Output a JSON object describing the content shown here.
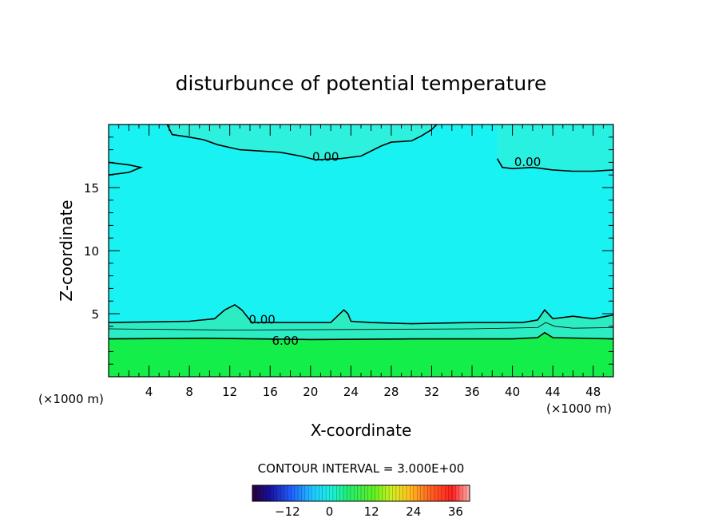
{
  "chart_data": {
    "type": "heatmap",
    "title": "disturbunce of potential temperature",
    "xlabel": "X-coordinate",
    "ylabel": "Z-coordinate",
    "x_unit_left": "(×1000 m)",
    "x_unit_right": "(×1000 m)",
    "xlim": [
      0,
      50
    ],
    "ylim": [
      0,
      20
    ],
    "x_ticks": [
      4,
      8,
      12,
      16,
      20,
      24,
      28,
      32,
      36,
      40,
      44,
      48
    ],
    "y_ticks": [
      5,
      10,
      15
    ],
    "contour_labels": [
      {
        "text": "0.00",
        "x": 21.5,
        "z": 17.5
      },
      {
        "text": "0.00",
        "x": 41.5,
        "z": 17.1
      },
      {
        "text": "0.00",
        "x": 15.2,
        "z": 4.6
      },
      {
        "text": "6.00",
        "x": 17.5,
        "z": 2.9
      }
    ],
    "contour_lines": [
      {
        "level": 6.0,
        "points": [
          [
            0,
            3.0
          ],
          [
            10,
            3.05
          ],
          [
            20,
            2.95
          ],
          [
            30,
            3.0
          ],
          [
            40,
            3.0
          ],
          [
            42.5,
            3.1
          ],
          [
            43.2,
            3.5
          ],
          [
            44,
            3.1
          ],
          [
            50,
            3.0
          ]
        ]
      },
      {
        "level": 3.0,
        "points": [
          [
            0,
            3.8
          ],
          [
            12,
            3.7
          ],
          [
            24,
            3.75
          ],
          [
            36,
            3.8
          ],
          [
            42.5,
            3.9
          ],
          [
            43.3,
            4.3
          ],
          [
            44.2,
            4.0
          ],
          [
            46,
            3.85
          ],
          [
            50,
            3.9
          ]
        ]
      },
      {
        "level": 0.0,
        "points": [
          [
            0,
            4.3
          ],
          [
            8,
            4.4
          ],
          [
            10.5,
            4.6
          ],
          [
            11.5,
            5.3
          ],
          [
            12.5,
            5.7
          ],
          [
            13.2,
            5.3
          ],
          [
            14.2,
            4.3
          ],
          [
            22,
            4.3
          ],
          [
            23.3,
            5.3
          ],
          [
            23.7,
            5.0
          ],
          [
            24,
            4.4
          ],
          [
            26,
            4.3
          ],
          [
            30,
            4.2
          ],
          [
            36,
            4.3
          ],
          [
            41,
            4.3
          ],
          [
            42.5,
            4.5
          ],
          [
            43.2,
            5.3
          ],
          [
            44,
            4.6
          ],
          [
            46,
            4.8
          ],
          [
            48,
            4.6
          ],
          [
            50,
            4.9
          ]
        ]
      },
      {
        "level": 0.0,
        "points": [
          [
            5.8,
            20
          ],
          [
            6.3,
            19.2
          ],
          [
            8,
            19.0
          ],
          [
            9.4,
            18.8
          ],
          [
            10.8,
            18.4
          ],
          [
            13,
            18.0
          ],
          [
            15,
            17.9
          ],
          [
            17,
            17.8
          ],
          [
            19,
            17.5
          ],
          [
            20.5,
            17.2
          ],
          [
            23,
            17.3
          ],
          [
            25,
            17.5
          ],
          [
            27,
            18.3
          ],
          [
            28,
            18.6
          ],
          [
            30,
            18.7
          ],
          [
            31,
            19.1
          ],
          [
            32,
            19.6
          ],
          [
            32.5,
            20
          ]
        ]
      },
      {
        "level": 0.0,
        "points": [
          [
            38.5,
            17.3
          ],
          [
            39,
            16.6
          ],
          [
            40,
            16.5
          ],
          [
            42,
            16.6
          ],
          [
            44,
            16.4
          ],
          [
            46,
            16.3
          ],
          [
            48,
            16.3
          ],
          [
            50,
            16.4
          ]
        ]
      },
      {
        "level": 0.0,
        "points": [
          [
            0,
            17.0
          ],
          [
            2,
            16.8
          ],
          [
            3.2,
            16.6
          ],
          [
            2,
            16.2
          ],
          [
            0,
            16.0
          ]
        ]
      }
    ],
    "colorbar": {
      "label": "CONTOUR INTERVAL = 3.000E+00",
      "ticks": [
        -12,
        0,
        12,
        24,
        36
      ],
      "range": [
        -22,
        40
      ]
    },
    "colors": {
      "background_field": "#19f2f2",
      "mid_field": "#2cecc4",
      "low_field": "#14ee4a",
      "contour": "#000000"
    }
  }
}
